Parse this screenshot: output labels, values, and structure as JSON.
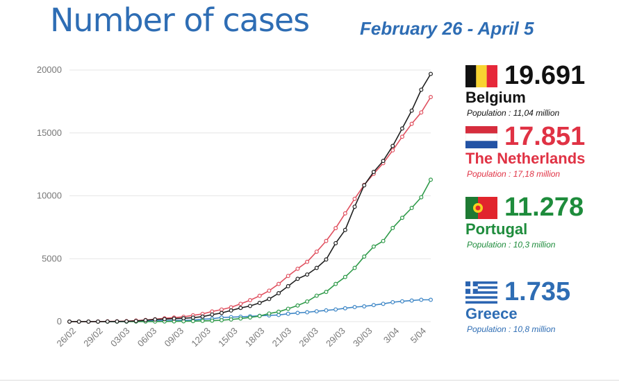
{
  "header": {
    "title": "Number of cases",
    "subtitle": "February 26 - April 5"
  },
  "chart_data": {
    "type": "line",
    "title": "Number of cases",
    "subtitle": "February 26 - April 5",
    "ylim": [
      0,
      20000
    ],
    "yticks": [
      "0",
      "5000",
      "10000",
      "15000",
      "20000"
    ],
    "xtick_labels": [
      "26/02",
      "29/02",
      "03/03",
      "06/03",
      "09/03",
      "12/03",
      "15/03",
      "18/03",
      "21/03",
      "26/03",
      "29/03",
      "30/03",
      "3/04",
      "5/04"
    ],
    "grid": "horizontal",
    "legend_position": "right",
    "series": [
      {
        "name": "Belgium",
        "color": "#1f1f1f",
        "values": [
          0,
          1,
          1,
          2,
          8,
          13,
          23,
          50,
          109,
          169,
          200,
          239,
          267,
          314,
          399,
          559,
          689,
          886,
          1085,
          1243,
          1486,
          1795,
          2257,
          2815,
          3401,
          3743,
          4269,
          4937,
          6235,
          7284,
          9134,
          10836,
          11899,
          12775,
          13964,
          15348,
          16770,
          18431,
          19691
        ]
      },
      {
        "name": "The Netherlands",
        "color": "#e0505f",
        "values": [
          0,
          1,
          2,
          7,
          18,
          24,
          38,
          82,
          128,
          188,
          265,
          321,
          382,
          503,
          614,
          804,
          959,
          1135,
          1413,
          1705,
          2051,
          2460,
          2994,
          3631,
          4204,
          4749,
          5560,
          6412,
          7431,
          8603,
          9762,
          10866,
          11750,
          12595,
          13614,
          14697,
          15723,
          16627,
          17851
        ]
      },
      {
        "name": "Portugal",
        "color": "#2e9a49",
        "values": [
          0,
          0,
          0,
          0,
          0,
          0,
          2,
          4,
          5,
          8,
          13,
          20,
          30,
          41,
          59,
          78,
          112,
          169,
          245,
          331,
          448,
          642,
          785,
          1020,
          1280,
          1600,
          2060,
          2362,
          2995,
          3544,
          4268,
          5170,
          5962,
          6408,
          7443,
          8251,
          9034,
          9886,
          11278
        ]
      },
      {
        "name": "Greece",
        "color": "#3d86c6",
        "values": [
          0,
          1,
          3,
          4,
          7,
          7,
          9,
          31,
          45,
          73,
          84,
          89,
          99,
          117,
          190,
          228,
          331,
          352,
          387,
          418,
          464,
          495,
          530,
          624,
          695,
          743,
          821,
          892,
          966,
          1061,
          1156,
          1212,
          1314,
          1415,
          1544,
          1613,
          1673,
          1735,
          1735
        ]
      }
    ]
  },
  "legend": [
    {
      "country": "Belgium",
      "count": "19.691",
      "population": "Population : 11,04 million",
      "count_color": "#111111",
      "label_color": "#111111",
      "flag": "belgium-flag"
    },
    {
      "country": "The Netherlands",
      "count": "17.851",
      "population": "Population : 17,18 million",
      "count_color": "#e03244",
      "label_color": "#e03244",
      "flag": "netherlands-flag"
    },
    {
      "country": "Portugal",
      "count": "11.278",
      "population": "Population : 10,3 million",
      "count_color": "#1e8c3c",
      "label_color": "#1e8c3c",
      "flag": "portugal-flag"
    },
    {
      "country": "Greece",
      "count": "1.735",
      "population": "Population : 10,8 million",
      "count_color": "#2e6db4",
      "label_color": "#2e6db4",
      "flag": "greece-flag"
    }
  ]
}
